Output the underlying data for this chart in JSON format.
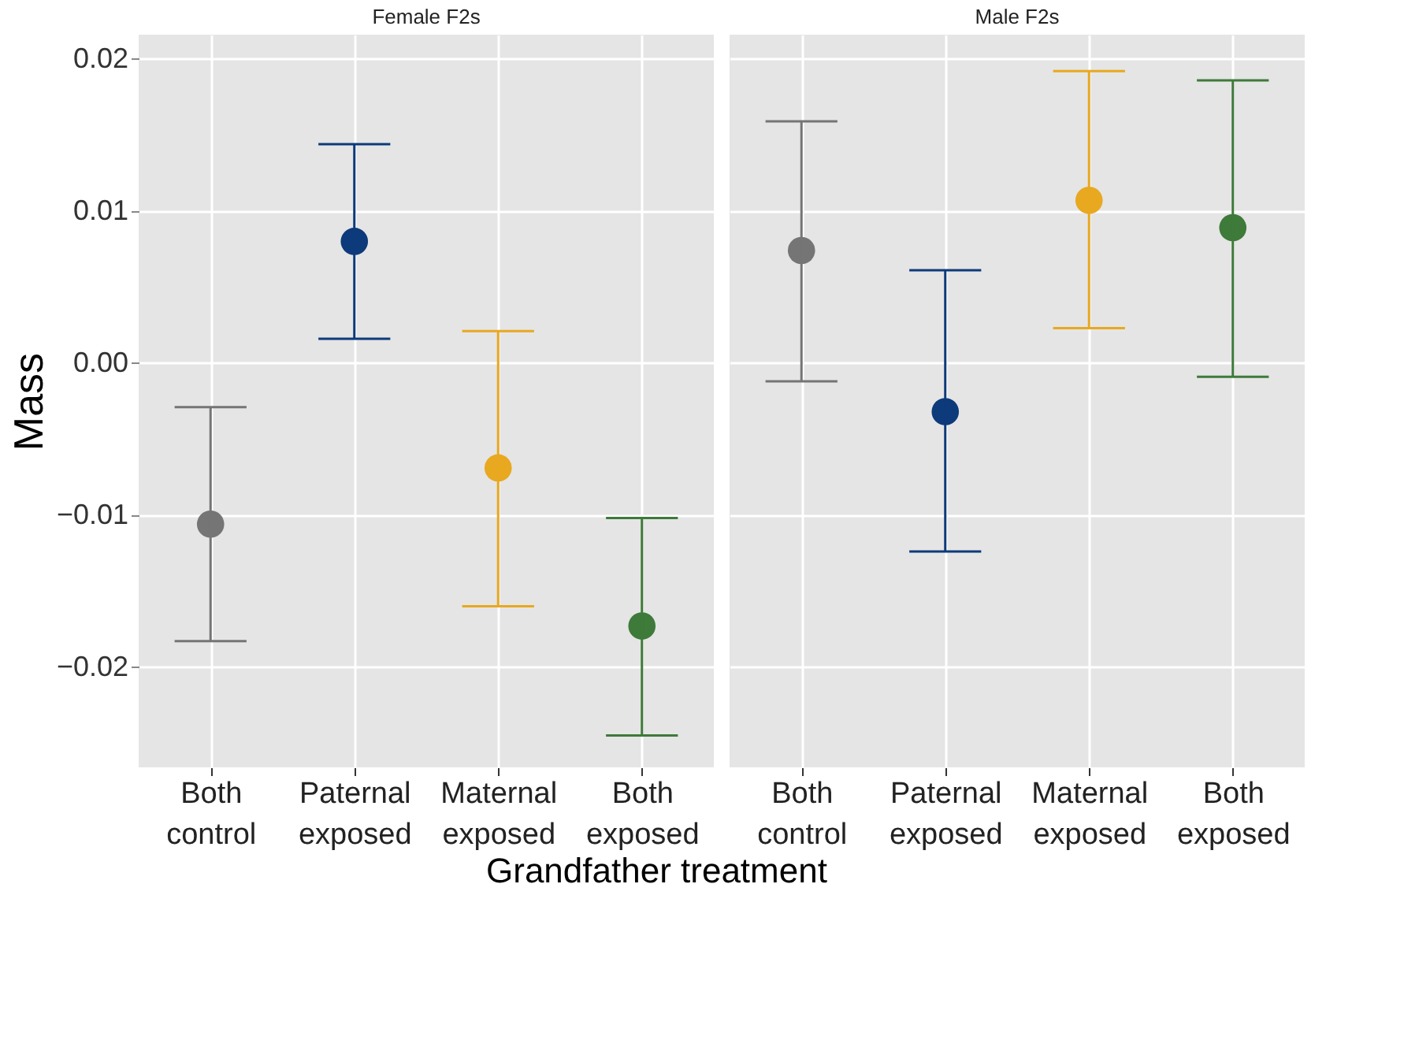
{
  "chart_data": [
    {
      "type": "scatter",
      "title": "Female F2s",
      "ylabel": "Mass",
      "xlabel": "Grandfather treatment",
      "categories": [
        "Both control",
        "Paternal exposed",
        "Maternal exposed",
        "Both exposed"
      ],
      "values": [
        -0.0106,
        0.008,
        -0.0069,
        -0.0173
      ],
      "errors": [
        [
          -0.0183,
          -0.0029
        ],
        [
          0.0016,
          0.0144
        ],
        [
          -0.016,
          0.0021
        ],
        [
          -0.0245,
          -0.0102
        ]
      ],
      "colors": [
        "#757575",
        "#0d3a7a",
        "#e8a820",
        "#3e7a3a"
      ],
      "ylim": [
        -0.0266,
        0.0216
      ],
      "yticks": [
        {
          "value": 0.02,
          "label": "0.02"
        },
        {
          "value": 0.01,
          "label": "0.01"
        },
        {
          "value": 0,
          "label": "0.00"
        },
        {
          "value": -0.01,
          "label": "−0.01"
        },
        {
          "value": -0.02,
          "label": "−0.02"
        }
      ],
      "grid": true,
      "marker": "circle"
    },
    {
      "type": "scatter",
      "title": "Male F2s",
      "categories": [
        "Both control",
        "Paternal exposed",
        "Maternal exposed",
        "Both exposed"
      ],
      "values": [
        0.0074,
        -0.0032,
        0.0107,
        0.0089
      ],
      "errors": [
        [
          -0.0012,
          0.0159
        ],
        [
          -0.0124,
          0.0061
        ],
        [
          0.0023,
          0.0192
        ],
        [
          -0.0009,
          0.0186
        ]
      ],
      "colors": [
        "#757575",
        "#0d3a7a",
        "#e8a820",
        "#3e7a3a"
      ],
      "ylim": [
        -0.0266,
        0.0216
      ],
      "yticks": [
        {
          "value": 0.02,
          "label": null
        },
        {
          "value": 0.01,
          "label": null
        },
        {
          "value": 0,
          "label": null
        },
        {
          "value": -0.01,
          "label": null
        },
        {
          "value": -0.02,
          "label": null
        }
      ],
      "grid": true,
      "marker": "circle",
      "tick_labels": "x"
    }
  ]
}
